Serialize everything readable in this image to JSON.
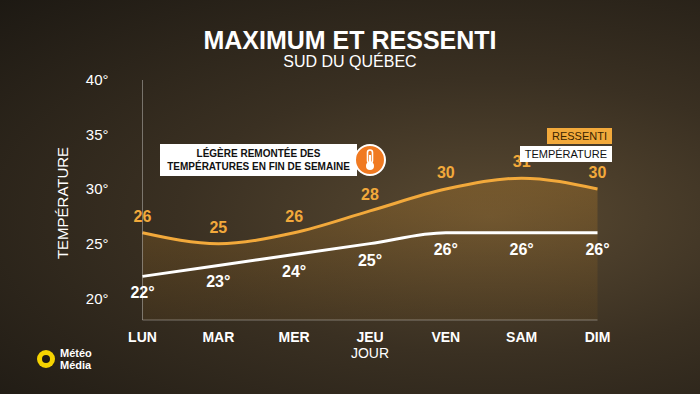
{
  "chart_data": {
    "type": "line",
    "title": "MAXIMUM ET RESSENTI",
    "subtitle": "SUD DU QUÉBEC",
    "x_label": "JOUR",
    "y_label": "TEMPÉRATURE",
    "annotation": "LÉGÈRE REMONTÉE DES TEMPÉRATURES EN FIN DE SEMAINE",
    "branding": "Météo Média",
    "categories": [
      "LUN",
      "MAR",
      "MER",
      "JEU",
      "VEN",
      "SAM",
      "DIM"
    ],
    "series": [
      {
        "name": "RESSENTI",
        "type": "area",
        "color": "#f2a93b",
        "values": [
          26,
          25,
          26,
          28,
          30,
          31,
          30
        ]
      },
      {
        "name": "TEMPÉRATURE",
        "type": "line",
        "color": "#ffffff",
        "values": [
          22,
          23,
          24,
          25,
          26,
          26,
          26
        ],
        "value_labels": [
          "22°",
          "23°",
          "24°",
          "25°",
          "26°",
          "26°",
          "26°"
        ]
      }
    ],
    "ylim": [
      18,
      40
    ],
    "yticks": [
      {
        "value": 20,
        "label": "20°"
      },
      {
        "value": 25,
        "label": "25°"
      },
      {
        "value": 30,
        "label": "30°"
      },
      {
        "value": 35,
        "label": "35°"
      },
      {
        "value": 40,
        "label": "40°"
      }
    ],
    "grid": false,
    "data_labels": true,
    "legend": "upper right"
  }
}
